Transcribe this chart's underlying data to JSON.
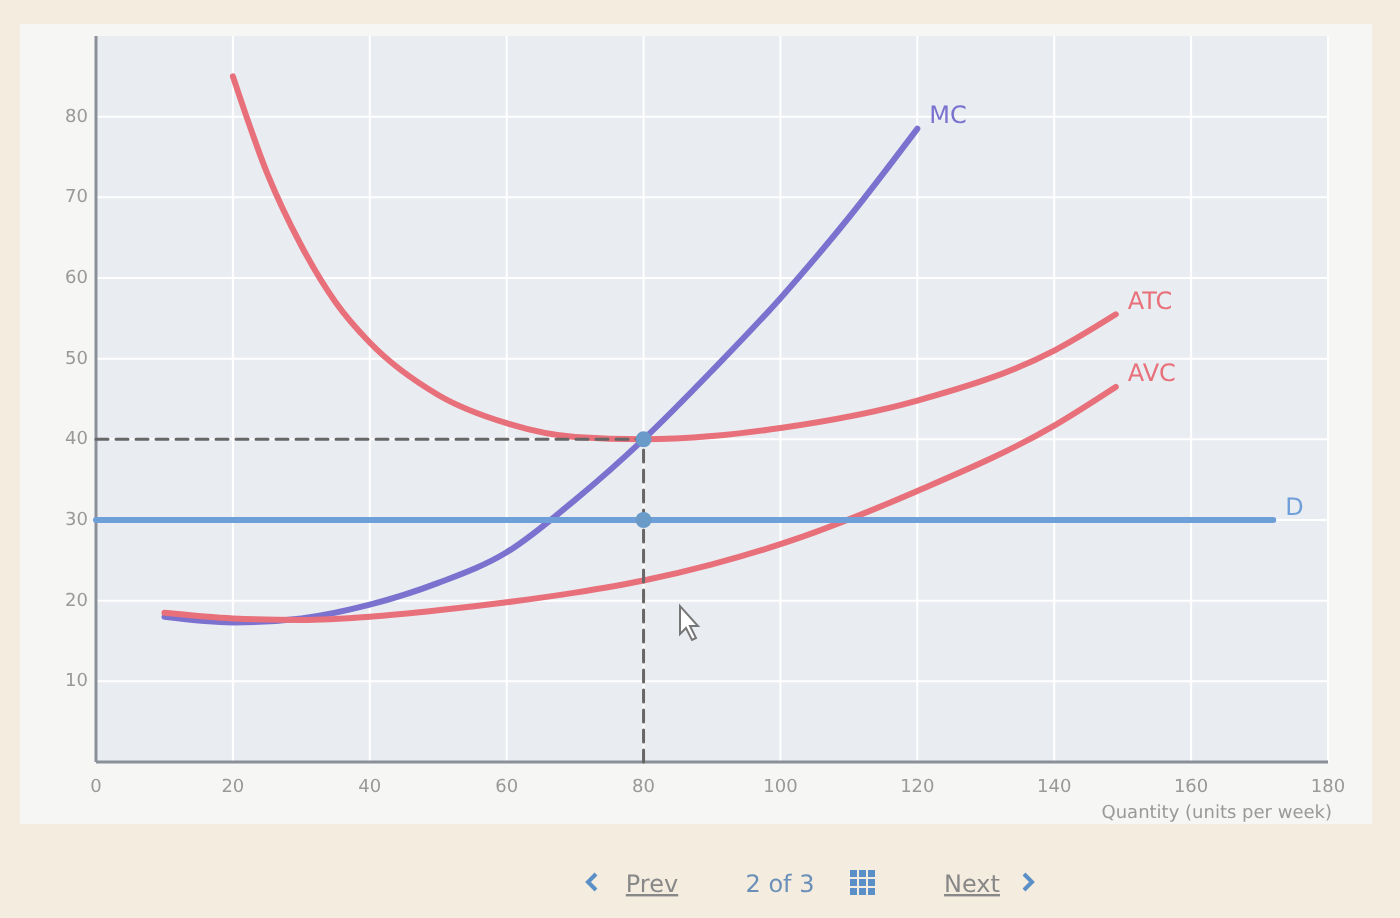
{
  "chart_data": {
    "type": "line",
    "xlabel": "Quantity (units per week)",
    "xlim": [
      0,
      180
    ],
    "ylim": [
      0,
      90
    ],
    "xticks": [
      0,
      20,
      40,
      60,
      80,
      100,
      120,
      140,
      160,
      180
    ],
    "yticks": [
      10,
      20,
      30,
      40,
      50,
      60,
      70,
      80
    ],
    "grid": true,
    "marker": "none",
    "line_style": "solid",
    "series": [
      {
        "name": "MC",
        "color": "#7b72d0",
        "x": [
          10,
          20,
          30,
          40,
          50,
          60,
          70,
          80,
          90,
          100,
          110,
          120
        ],
        "values": [
          18,
          17.3,
          17.8,
          19.5,
          22.2,
          26,
          32.5,
          40,
          48.5,
          57.5,
          67.5,
          78.5
        ]
      },
      {
        "name": "ATC",
        "color": "#e8707a",
        "x": [
          20,
          25,
          30,
          35,
          40,
          50,
          60,
          70,
          80,
          90,
          100,
          120,
          140,
          149
        ],
        "values": [
          85,
          73,
          64,
          57,
          52,
          45.5,
          42,
          40.3,
          40,
          40.4,
          41.4,
          44.8,
          51,
          55.5
        ]
      },
      {
        "name": "AVC",
        "color": "#e8707a",
        "x": [
          10,
          20,
          30,
          40,
          50,
          60,
          70,
          80,
          90,
          100,
          120,
          140,
          149
        ],
        "values": [
          18.5,
          17.8,
          17.6,
          18,
          18.8,
          19.8,
          21,
          22.5,
          24.5,
          27,
          33.6,
          41.7,
          46.5
        ]
      },
      {
        "name": "D",
        "color": "#6f9fd8",
        "x": [
          0,
          172
        ],
        "values": [
          30,
          30
        ]
      },
      {
        "color": "#666666",
        "line_style": "dashed",
        "x": [
          0,
          80
        ],
        "values": [
          40,
          40
        ]
      },
      {
        "color": "#666666",
        "line_style": "dashed",
        "x": [
          80,
          80
        ],
        "values": [
          0,
          40
        ]
      },
      {
        "type": "scatter",
        "marker": "circle",
        "color": "#6a9ac8",
        "x": [
          80,
          80
        ],
        "values": [
          40,
          30
        ]
      }
    ],
    "annotations": [
      "Prev",
      "2 of 3",
      "Next"
    ]
  }
}
